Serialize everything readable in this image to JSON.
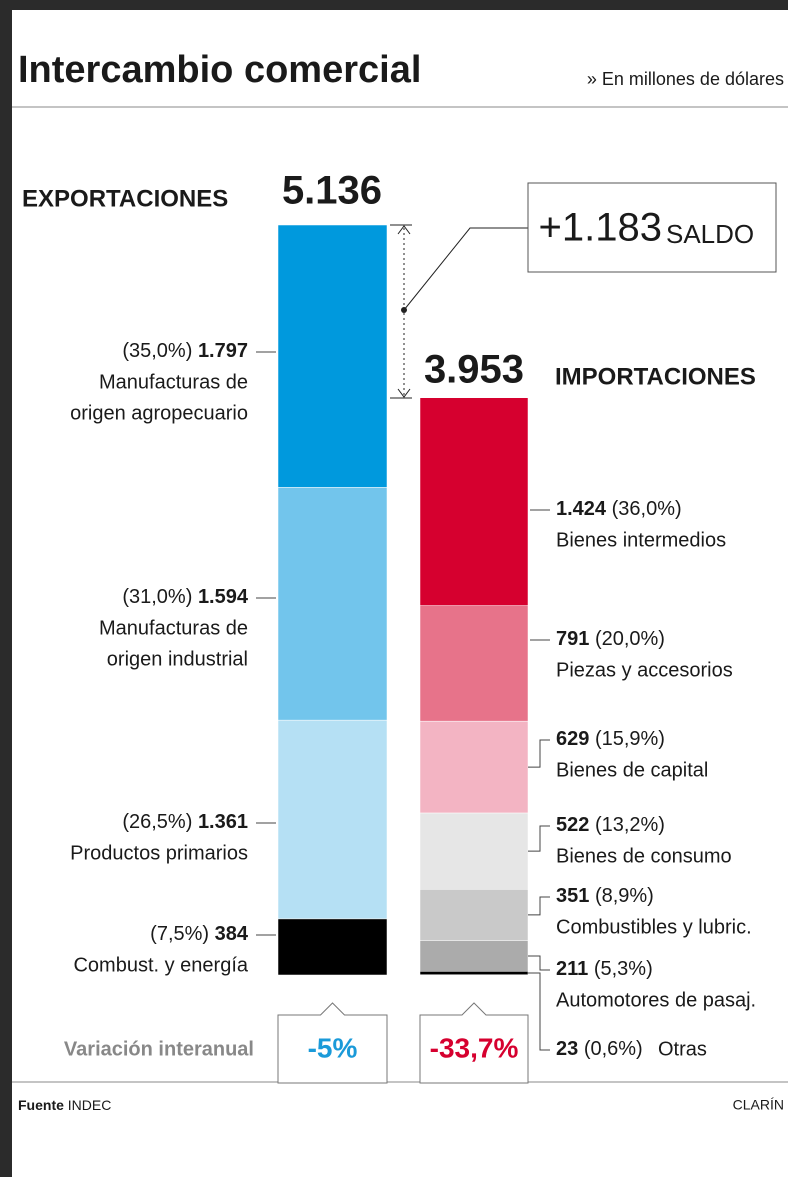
{
  "title": "Intercambio comercial",
  "subtitle": "» En millones de dólares",
  "chart_data": {
    "type": "stacked_bar",
    "exports": {
      "name": "EXPORTACIONES",
      "total": 5136,
      "total_label": "5.136",
      "categories": [
        [
          "Manufacturas de",
          "origen agropecuario"
        ],
        [
          "Manufacturas de",
          "origen industrial"
        ],
        [
          "Productos primarios"
        ],
        [
          "Combust. y energía"
        ]
      ],
      "values": [
        1797,
        1594,
        1361,
        384
      ],
      "value_labels": [
        "1.797",
        "1.594",
        "1.361",
        "384"
      ],
      "pct": [
        35.0,
        31.0,
        26.5,
        7.5
      ],
      "pct_labels": [
        "(35,0%)",
        "(31,0%)",
        "(26,5%)",
        "(7,5%)"
      ],
      "colors": [
        "#0099dd",
        "#72c5ec",
        "#b5e0f4",
        "#000000"
      ],
      "variation": -5,
      "variation_label": "-5%",
      "variation_color": "#1a9ad9"
    },
    "imports": {
      "name": "IMPORTACIONES",
      "total": 3953,
      "total_label": "3.953",
      "categories": [
        [
          "Bienes intermedios"
        ],
        [
          "Piezas y accesorios"
        ],
        [
          "Bienes de capital"
        ],
        [
          "Bienes de consumo"
        ],
        [
          "Combustibles y lubric."
        ],
        [
          "Automotores de pasaj."
        ],
        [
          "Otras"
        ]
      ],
      "values": [
        1424,
        791,
        629,
        522,
        351,
        211,
        23
      ],
      "value_labels": [
        "1.424",
        "791",
        "629",
        "522",
        "351",
        "211",
        "23"
      ],
      "pct": [
        36.0,
        20.0,
        15.9,
        13.2,
        8.9,
        5.3,
        0.6
      ],
      "pct_labels": [
        "(36,0%)",
        "(20,0%)",
        "(15,9%)",
        "(13,2%)",
        "(8,9%)",
        "(5,3%)",
        "(0,6%)"
      ],
      "colors": [
        "#d6002f",
        "#e7738a",
        "#f3b4c3",
        "#e6e6e6",
        "#c9c9c9",
        "#ababab",
        "#000000"
      ],
      "variation": -33.7,
      "variation_label": "-33,7%",
      "variation_color": "#d6002f"
    },
    "balance": {
      "value": 1183,
      "value_label": "+1.183",
      "label": "SALDO"
    },
    "variation_title": "Variación interanual"
  },
  "footer": {
    "source_label": "Fuente",
    "source": "INDEC",
    "brand": "CLARÍN"
  }
}
